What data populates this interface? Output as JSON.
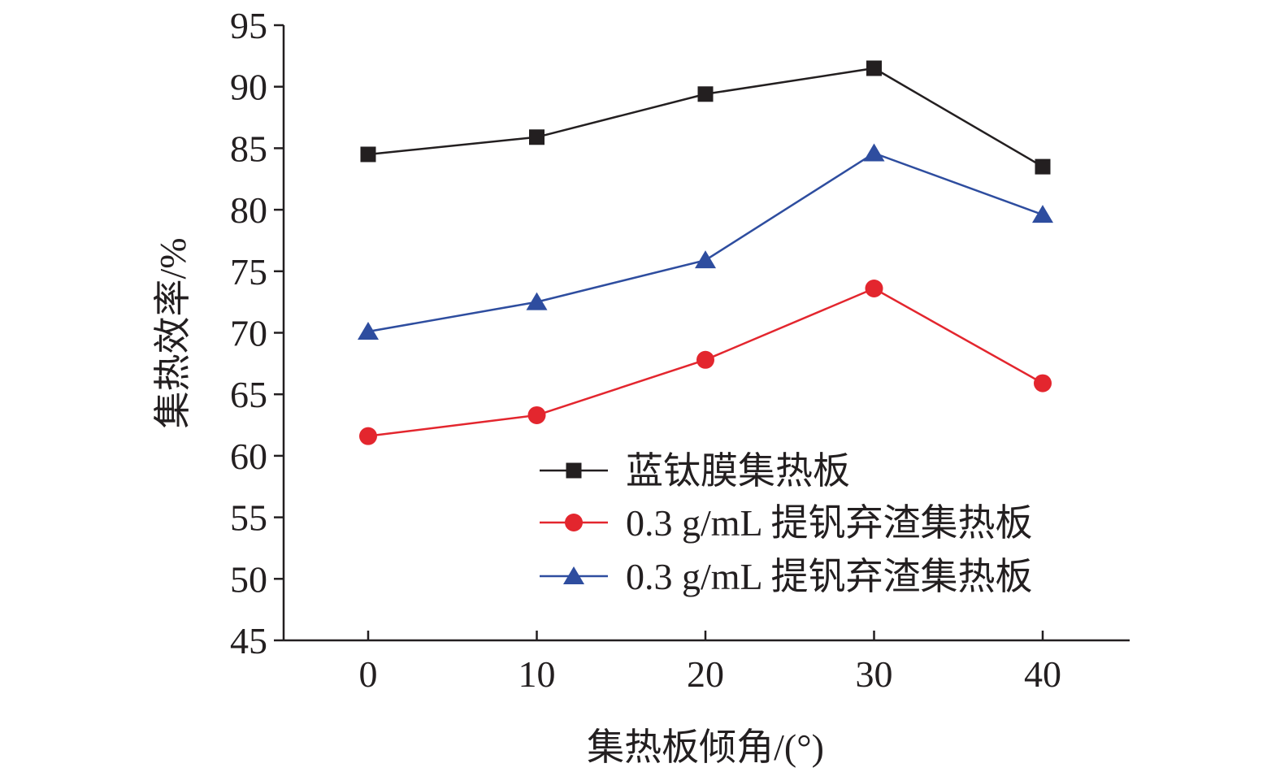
{
  "chart_data": {
    "type": "line",
    "xlabel": "集热板倾角/(°)",
    "ylabel": "集热效率/%",
    "x": [
      0,
      10,
      20,
      30,
      40
    ],
    "x_ticks": [
      "0",
      "10",
      "20",
      "30",
      "40"
    ],
    "y_ticks": [
      "45",
      "50",
      "55",
      "60",
      "65",
      "70",
      "75",
      "80",
      "85",
      "90",
      "95"
    ],
    "xlim": [
      -5,
      45
    ],
    "ylim": [
      45,
      95
    ],
    "grid": false,
    "legend_position": "lower-right",
    "series": [
      {
        "name": "蓝钛膜集热板",
        "marker": "square",
        "color": "#231f20",
        "values": [
          84.5,
          85.9,
          89.4,
          91.5,
          83.5
        ]
      },
      {
        "name": "0.3 g/mL 提钒弃渣集热板",
        "marker": "circle",
        "color": "#e3262e",
        "values": [
          61.6,
          63.3,
          67.8,
          73.6,
          65.9
        ]
      },
      {
        "name": "0.3 g/mL 提钒弃渣集热板",
        "marker": "triangle",
        "color": "#2e4d9f",
        "values": [
          70.1,
          72.5,
          75.9,
          84.6,
          79.6
        ]
      }
    ]
  }
}
